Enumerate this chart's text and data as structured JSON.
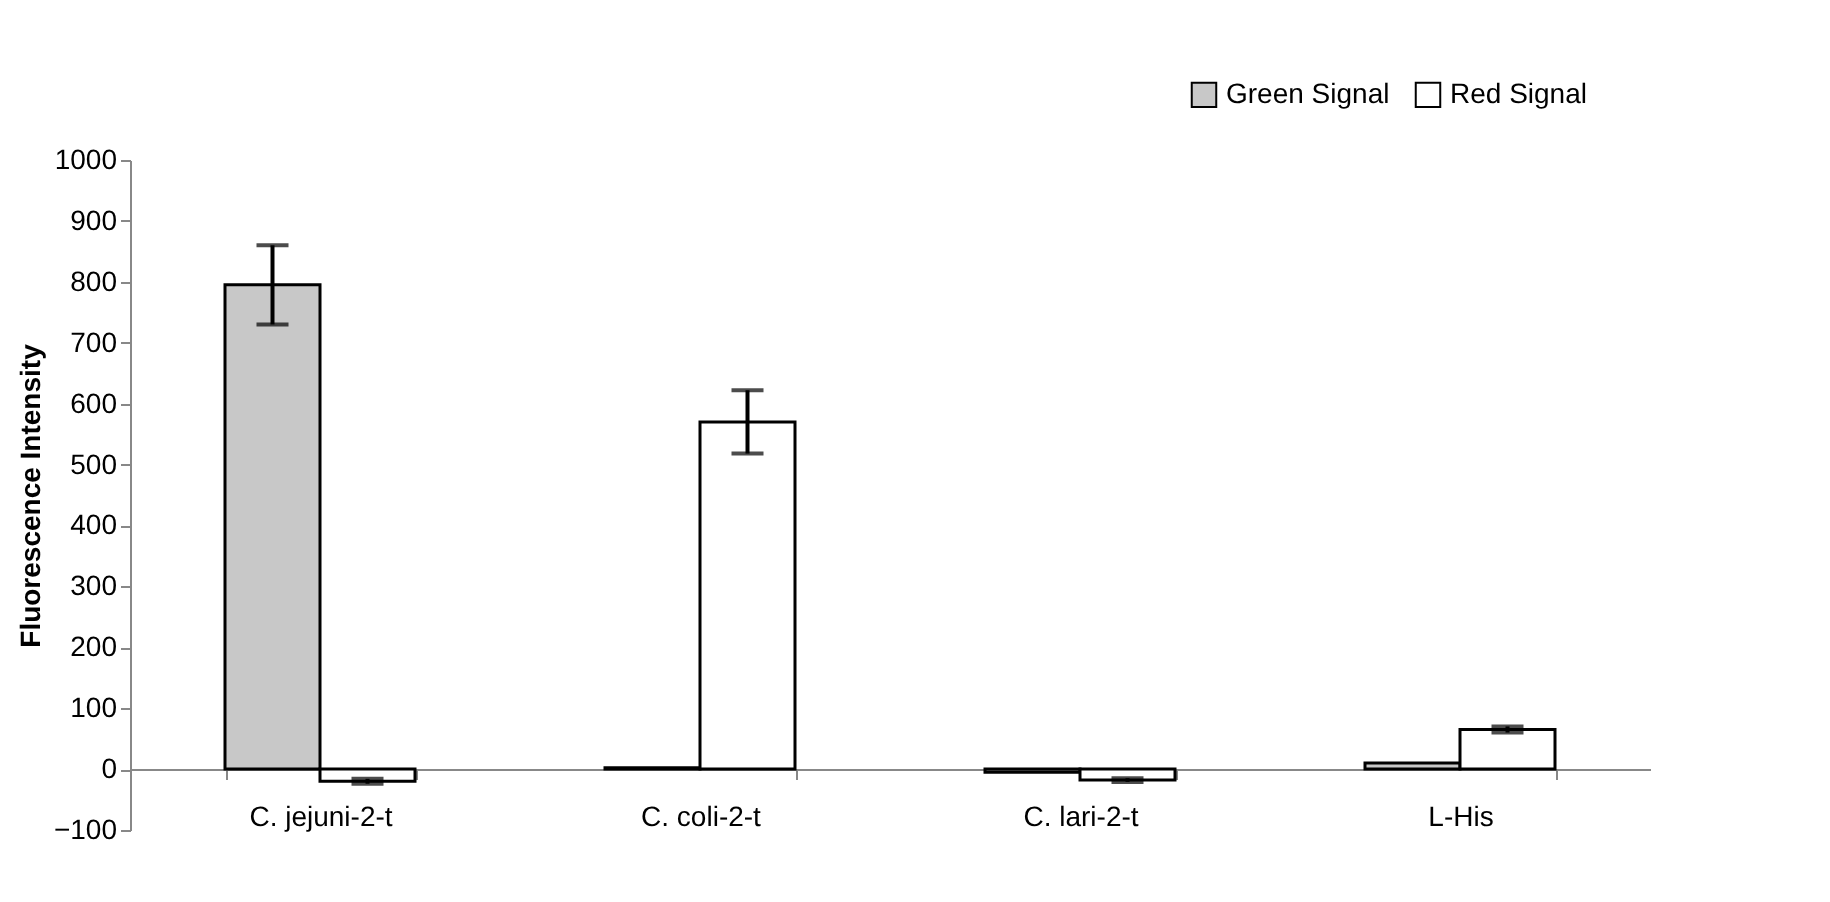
{
  "chart_data": {
    "type": "bar",
    "ylabel": "Fluorescence Intensity",
    "categories": [
      "C. jejuni-2-t",
      "C. coli-2-t",
      "C. lari-2-t",
      "L-His"
    ],
    "series": [
      {
        "name": "Green Signal",
        "color": "#c8c8c8",
        "values": [
          795,
          2,
          -5,
          10
        ],
        "errors": [
          65,
          null,
          null,
          null
        ]
      },
      {
        "name": "Red Signal",
        "color": "#ffffff",
        "values": [
          -20,
          570,
          -18,
          65
        ],
        "errors": [
          4,
          52,
          3,
          5
        ]
      }
    ],
    "ylim": [
      -100,
      1000
    ],
    "yticks": [
      -100,
      0,
      100,
      200,
      300,
      400,
      500,
      600,
      700,
      800,
      900,
      1000
    ],
    "grid": false,
    "legend": "top right"
  }
}
